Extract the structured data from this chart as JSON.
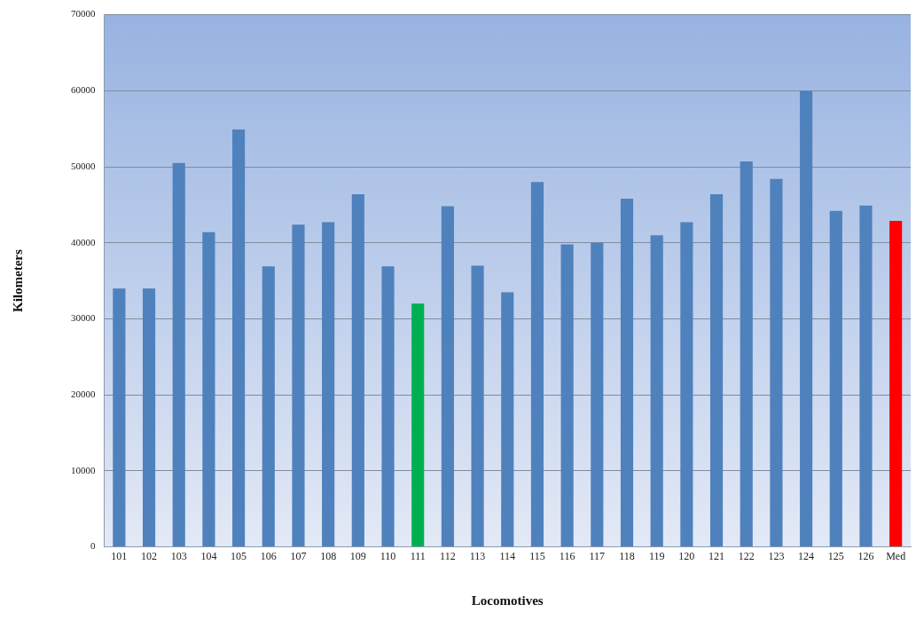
{
  "chart_data": {
    "type": "bar",
    "xlabel": "Locomotives",
    "ylabel": "Kilometers",
    "categories": [
      "101",
      "102",
      "103",
      "104",
      "105",
      "106",
      "107",
      "108",
      "109",
      "110",
      "111",
      "112",
      "113",
      "114",
      "115",
      "116",
      "117",
      "118",
      "119",
      "120",
      "121",
      "122",
      "123",
      "124",
      "125",
      "126",
      "Med"
    ],
    "values": [
      34000,
      34000,
      50500,
      41400,
      54900,
      36900,
      42400,
      42700,
      46400,
      36900,
      32000,
      44800,
      37000,
      33500,
      48000,
      39800,
      40000,
      45800,
      41000,
      42700,
      46400,
      50700,
      48400,
      60000,
      44200,
      44900,
      42900
    ],
    "colors": [
      "#4f81bd",
      "#4f81bd",
      "#4f81bd",
      "#4f81bd",
      "#4f81bd",
      "#4f81bd",
      "#4f81bd",
      "#4f81bd",
      "#4f81bd",
      "#4f81bd",
      "#00b050",
      "#4f81bd",
      "#4f81bd",
      "#4f81bd",
      "#4f81bd",
      "#4f81bd",
      "#4f81bd",
      "#4f81bd",
      "#4f81bd",
      "#4f81bd",
      "#4f81bd",
      "#4f81bd",
      "#4f81bd",
      "#4f81bd",
      "#4f81bd",
      "#4f81bd",
      "#ff0000"
    ],
    "ylim": [
      0,
      70000
    ],
    "yticks": [
      0,
      10000,
      20000,
      30000,
      40000,
      50000,
      60000,
      70000
    ],
    "grid": "y",
    "legend": false
  }
}
